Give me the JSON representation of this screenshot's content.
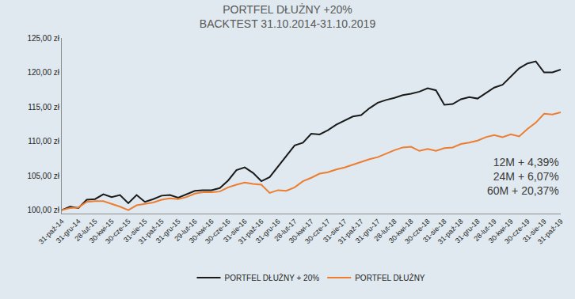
{
  "chart_data": {
    "type": "line",
    "title": "PORTFEL DŁUŻNY +20%",
    "subtitle": "BACKTEST 31.10.2014-31.10.2019",
    "annotations": [
      "12M + 4,39%",
      "24M + 6,07%",
      "60M + 20,37%"
    ],
    "categories": [
      "31-paź-14",
      null,
      "31-gru-14",
      null,
      "28-lut-15",
      null,
      "30-kwi-15",
      null,
      "30-cze-15",
      null,
      "31-sie-15",
      null,
      "31-paź-15",
      null,
      "31-gru-15",
      null,
      "29-lut-16",
      null,
      "30-kwi-16",
      null,
      "30-cze-16",
      null,
      "31-sie-16",
      null,
      "31-paź-16",
      null,
      "31-gru-16",
      null,
      "28-lut-17",
      null,
      "30-kwi-17",
      null,
      "30-cze-17",
      null,
      "31-sie-17",
      null,
      "31-paź-17",
      null,
      "31-gru-17",
      null,
      "28-lut-18",
      null,
      "30-kwi-18",
      null,
      "30-cze-18",
      null,
      "31-sie-18",
      null,
      "31-paź-18",
      null,
      "31-gru-18",
      null,
      "28-lut-19",
      null,
      "30-kwi-19",
      null,
      "30-cze-19",
      null,
      "31-sie-19",
      null,
      "31-paź-19"
    ],
    "series": [
      {
        "name": "PORTFEL DŁUŻNY + 20%",
        "color": "#1a1a1a",
        "values": [
          100.0,
          100.5,
          100.3,
          101.5,
          101.6,
          102.3,
          101.9,
          102.2,
          101.0,
          102.2,
          101.2,
          101.6,
          102.1,
          102.2,
          101.8,
          102.3,
          102.8,
          102.9,
          102.9,
          103.2,
          104.3,
          105.8,
          106.2,
          105.4,
          104.2,
          104.8,
          106.3,
          107.8,
          109.4,
          109.8,
          111.1,
          111.0,
          111.6,
          112.4,
          113.0,
          113.6,
          113.8,
          114.8,
          115.6,
          116.0,
          116.3,
          116.7,
          116.9,
          117.2,
          117.7,
          117.4,
          115.3,
          115.4,
          116.1,
          116.4,
          116.2,
          117.0,
          117.8,
          118.2,
          119.4,
          120.6,
          121.3,
          121.6,
          120.0,
          120.0,
          120.4
        ]
      },
      {
        "name": "PORTFEL DŁUŻNY",
        "color": "#ed7d31",
        "values": [
          100.0,
          100.3,
          100.4,
          101.2,
          101.3,
          101.3,
          100.9,
          100.5,
          100.0,
          100.7,
          100.9,
          101.1,
          101.5,
          101.7,
          101.6,
          101.9,
          102.4,
          102.6,
          102.6,
          102.7,
          103.3,
          103.7,
          104.0,
          103.8,
          103.7,
          102.5,
          102.9,
          102.8,
          103.3,
          104.2,
          104.7,
          105.3,
          105.5,
          105.9,
          106.2,
          106.6,
          107.0,
          107.4,
          107.7,
          108.2,
          108.7,
          109.1,
          109.2,
          108.6,
          108.9,
          108.6,
          109.0,
          109.1,
          109.6,
          109.8,
          110.1,
          110.6,
          110.9,
          110.6,
          111.0,
          110.7,
          111.8,
          112.7,
          114.0,
          113.9,
          114.2
        ]
      }
    ],
    "ylim": [
      99.5,
      125
    ],
    "yticks": [
      {
        "value": 100,
        "label": "100,00 zł"
      },
      {
        "value": 105,
        "label": "105,00 zł"
      },
      {
        "value": 110,
        "label": "110,00 zł"
      },
      {
        "value": 115,
        "label": "115,00 zł"
      },
      {
        "value": 120,
        "label": "120,00 zł"
      },
      {
        "value": 125,
        "label": "125,00 zł"
      }
    ],
    "grid": false,
    "legend": "bottom"
  }
}
